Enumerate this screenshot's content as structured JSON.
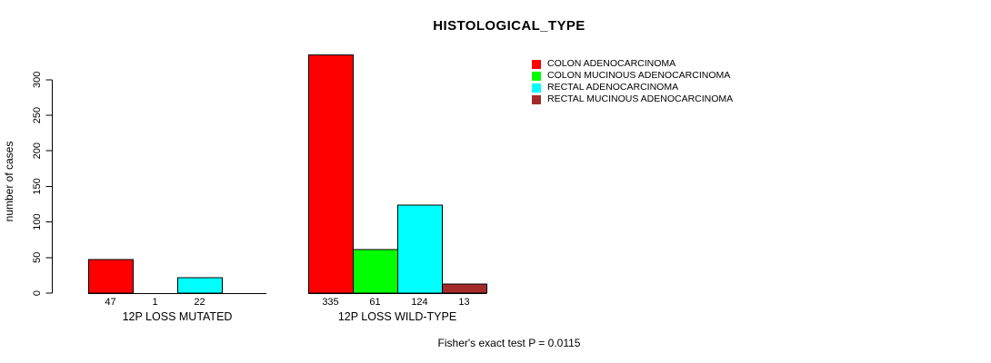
{
  "chart_data": {
    "type": "bar",
    "title": "HISTOLOGICAL_TYPE",
    "ylabel": "number of cases",
    "xlabel": "",
    "footnote": "Fisher's exact test P = 0.0115",
    "ylim": [
      0,
      300
    ],
    "yticks": [
      0,
      50,
      100,
      150,
      200,
      250,
      300
    ],
    "grid": false,
    "legend_position": "right",
    "categories": [
      "12P LOSS MUTATED",
      "12P LOSS WILD-TYPE"
    ],
    "series": [
      {
        "name": "COLON ADENOCARCINOMA",
        "color": "#ff0000",
        "values": [
          47,
          335
        ]
      },
      {
        "name": "COLON MUCINOUS ADENOCARCINOMA",
        "color": "#00ff00",
        "values": [
          1,
          61
        ]
      },
      {
        "name": "RECTAL ADENOCARCINOMA",
        "color": "#00ffff",
        "values": [
          22,
          124
        ]
      },
      {
        "name": "RECTAL MUCINOUS ADENOCARCINOMA",
        "color": "#a52a2a",
        "values": [
          0,
          13
        ]
      }
    ],
    "bar_value_labels": [
      [
        "47",
        "1",
        "22",
        ""
      ],
      [
        "335",
        "61",
        "124",
        "13"
      ]
    ],
    "colors": {
      "axis": "#000000",
      "text": "#000000",
      "background": "#ffffff"
    }
  }
}
